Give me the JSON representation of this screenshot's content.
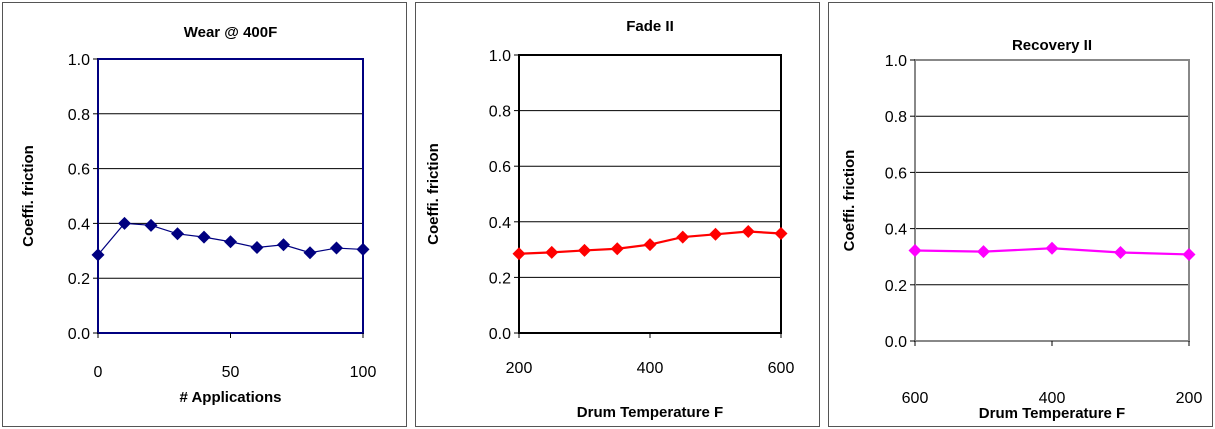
{
  "charts": [
    {
      "id": "wear",
      "type": "line",
      "title": "Wear @ 400F",
      "xlabel": "# Applications",
      "ylabel": "Coeffi. friction",
      "xlim": [
        0,
        100
      ],
      "ylim": [
        0,
        1.0
      ],
      "xticks": [
        "0",
        "50",
        "100"
      ],
      "xtick_values": [
        0,
        50,
        100
      ],
      "yticks": [
        "0.0",
        "0.2",
        "0.4",
        "0.6",
        "0.8",
        "1.0"
      ],
      "ytick_values": [
        0,
        0.2,
        0.4,
        0.6,
        0.8,
        1.0
      ],
      "grid": true,
      "color": "#000080",
      "x": [
        0,
        10,
        20,
        30,
        40,
        50,
        60,
        70,
        80,
        90,
        100
      ],
      "y": [
        0.285,
        0.4,
        0.393,
        0.362,
        0.35,
        0.333,
        0.312,
        0.322,
        0.293,
        0.31,
        0.305
      ]
    },
    {
      "id": "fade",
      "type": "line",
      "title": "Fade II",
      "xlabel": "Drum Temperature F",
      "ylabel": "Coeffi. friction",
      "xlim": [
        200,
        600
      ],
      "ylim": [
        0,
        1.0
      ],
      "xticks": [
        "200",
        "400",
        "600"
      ],
      "xtick_values": [
        200,
        400,
        600
      ],
      "yticks": [
        "0.0",
        "0.2",
        "0.4",
        "0.6",
        "0.8",
        "1.0"
      ],
      "ytick_values": [
        0,
        0.2,
        0.4,
        0.6,
        0.8,
        1.0
      ],
      "grid": true,
      "color": "#ff0000",
      "x": [
        200,
        250,
        300,
        350,
        400,
        450,
        500,
        550,
        600
      ],
      "y": [
        0.285,
        0.29,
        0.297,
        0.303,
        0.318,
        0.345,
        0.355,
        0.365,
        0.358
      ]
    },
    {
      "id": "recovery",
      "type": "line",
      "title": "Recovery II",
      "xlabel": "Drum Temperature F",
      "ylabel": "Coeffi. friction",
      "xlim": [
        600,
        200
      ],
      "ylim": [
        0,
        1.0
      ],
      "xticks": [
        "600",
        "400",
        "200"
      ],
      "xtick_values": [
        600,
        400,
        200
      ],
      "yticks": [
        "0.0",
        "0.2",
        "0.4",
        "0.6",
        "0.8",
        "1.0"
      ],
      "ytick_values": [
        0,
        0.2,
        0.4,
        0.6,
        0.8,
        1.0
      ],
      "grid": true,
      "color": "#ff00ff",
      "x": [
        600,
        500,
        400,
        300,
        200
      ],
      "y": [
        0.322,
        0.318,
        0.33,
        0.315,
        0.308
      ]
    }
  ]
}
